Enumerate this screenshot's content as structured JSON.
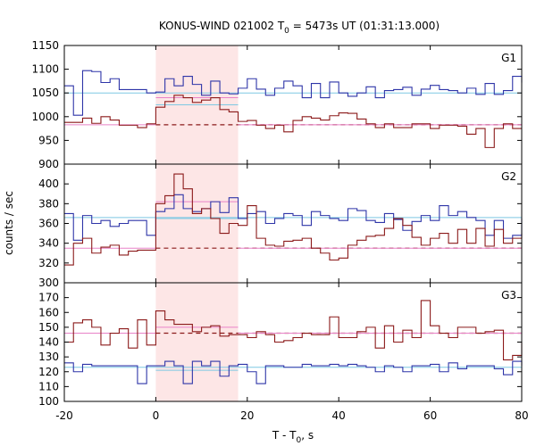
{
  "chart_data": {
    "type": "line",
    "title": {
      "prefix": "KONUS-WIND 021002 T",
      "sub": "0",
      "suffix": " = 5473s UT (01:31:13.000)"
    },
    "xlabel": {
      "prefix": "T - T",
      "sub": "0",
      "suffix": ", s"
    },
    "ylabel": "counts / sec",
    "xlim": [
      -20,
      80
    ],
    "xticks": [
      -20,
      0,
      20,
      40,
      60,
      80
    ],
    "highlight_interval": [
      0,
      18
    ],
    "colors": {
      "blue": "#2e35a8",
      "red": "#8b1a1a",
      "cyan_bg": "#7ec8e3",
      "pink_bg": "#e882c8",
      "highlight": "#fde6e6"
    },
    "panels": [
      {
        "name": "G1",
        "ylim": [
          900,
          1150
        ],
        "yticks": [
          900,
          950,
          1000,
          1050,
          1100,
          1150
        ],
        "series": [
          {
            "color": "blue",
            "x": [
              -20,
              -18,
              -16,
              -14,
              -12,
              -10,
              -8,
              -6,
              -4,
              -2,
              0,
              2,
              4,
              6,
              8,
              10,
              12,
              14,
              16,
              18,
              20,
              22,
              24,
              26,
              28,
              30,
              32,
              34,
              36,
              38,
              40,
              42,
              44,
              46,
              48,
              50,
              52,
              54,
              56,
              58,
              60,
              62,
              64,
              66,
              68,
              70,
              72,
              74,
              76,
              78,
              80
            ],
            "y": [
              1065,
              1003,
              1097,
              1095,
              1072,
              1080,
              1057,
              1057,
              1057,
              1050,
              1052,
              1080,
              1065,
              1085,
              1068,
              1045,
              1075,
              1050,
              1048,
              1060,
              1080,
              1058,
              1045,
              1060,
              1075,
              1065,
              1040,
              1070,
              1040,
              1073,
              1050,
              1043,
              1050,
              1063,
              1040,
              1055,
              1057,
              1062,
              1045,
              1058,
              1066,
              1057,
              1055,
              1050,
              1060,
              1047,
              1070,
              1047,
              1055,
              1085,
              1072
            ]
          },
          {
            "color": "red",
            "x": [
              -20,
              -18,
              -16,
              -14,
              -12,
              -10,
              -8,
              -6,
              -4,
              -2,
              0,
              2,
              4,
              6,
              8,
              10,
              12,
              14,
              16,
              18,
              20,
              22,
              24,
              26,
              28,
              30,
              32,
              34,
              36,
              38,
              40,
              42,
              44,
              46,
              48,
              50,
              52,
              54,
              56,
              58,
              60,
              62,
              64,
              66,
              68,
              70,
              72,
              74,
              76,
              78,
              80
            ],
            "y": [
              988,
              988,
              997,
              986,
              1000,
              993,
              982,
              982,
              977,
              985,
              1020,
              1032,
              1045,
              1040,
              1030,
              1035,
              1040,
              1015,
              1010,
              990,
              992,
              982,
              975,
              982,
              968,
              992,
              1000,
              997,
              993,
              1002,
              1008,
              1007,
              995,
              985,
              977,
              985,
              977,
              977,
              985,
              985,
              975,
              982,
              982,
              980,
              963,
              975,
              935,
              975,
              985,
              975,
              975
            ]
          }
        ],
        "background_levels": [
          {
            "color": "cyan_bg",
            "value": 1050
          },
          {
            "color": "pink_bg",
            "value": 983,
            "dashed_color": "red"
          }
        ],
        "interval_levels": [
          {
            "color": "cyan_bg",
            "value": 1025
          },
          {
            "color": "pink_bg",
            "value": 1040
          }
        ]
      },
      {
        "name": "G2",
        "ylim": [
          300,
          420
        ],
        "yticks": [
          300,
          320,
          340,
          360,
          380,
          400
        ],
        "series": [
          {
            "color": "blue",
            "x": [
              -20,
              -18,
              -16,
              -14,
              -12,
              -10,
              -8,
              -6,
              -4,
              -2,
              0,
              2,
              4,
              6,
              8,
              10,
              12,
              14,
              16,
              18,
              20,
              22,
              24,
              26,
              28,
              30,
              32,
              34,
              36,
              38,
              40,
              42,
              44,
              46,
              48,
              50,
              52,
              54,
              56,
              58,
              60,
              62,
              64,
              66,
              68,
              70,
              72,
              74,
              76,
              78,
              80
            ],
            "y": [
              370,
              343,
              368,
              360,
              363,
              357,
              360,
              363,
              363,
              348,
              372,
              375,
              389,
              375,
              372,
              375,
              382,
              371,
              386,
              365,
              370,
              372,
              360,
              365,
              370,
              368,
              358,
              372,
              368,
              365,
              363,
              375,
              373,
              363,
              361,
              370,
              364,
              353,
              362,
              368,
              363,
              378,
              368,
              372,
              366,
              363,
              348,
              363,
              345,
              348,
              365
            ]
          },
          {
            "color": "red",
            "x": [
              -20,
              -18,
              -16,
              -14,
              -12,
              -10,
              -8,
              -6,
              -4,
              -2,
              0,
              2,
              4,
              6,
              8,
              10,
              12,
              14,
              16,
              18,
              20,
              22,
              24,
              26,
              28,
              30,
              32,
              34,
              36,
              38,
              40,
              42,
              44,
              46,
              48,
              50,
              52,
              54,
              56,
              58,
              60,
              62,
              64,
              66,
              68,
              70,
              72,
              74,
              76,
              78,
              80
            ],
            "y": [
              318,
              340,
              345,
              330,
              336,
              338,
              328,
              332,
              333,
              333,
              380,
              388,
              410,
              395,
              370,
              375,
              365,
              350,
              360,
              358,
              378,
              345,
              338,
              337,
              342,
              343,
              345,
              335,
              330,
              323,
              325,
              338,
              343,
              347,
              348,
              355,
              365,
              358,
              346,
              338,
              345,
              350,
              340,
              354,
              340,
              355,
              337,
              354,
              340,
              345,
              350
            ]
          }
        ],
        "background_levels": [
          {
            "color": "cyan_bg",
            "value": 366
          },
          {
            "color": "pink_bg",
            "value": 335,
            "dashed_color": "red"
          }
        ],
        "interval_levels": [
          {
            "color": "cyan_bg",
            "value": 365
          },
          {
            "color": "pink_bg",
            "value": 382
          }
        ]
      },
      {
        "name": "G3",
        "ylim": [
          100,
          180
        ],
        "yticks": [
          100,
          110,
          120,
          130,
          140,
          150,
          160,
          170
        ],
        "series": [
          {
            "color": "blue",
            "x": [
              -20,
              -18,
              -16,
              -14,
              -12,
              -10,
              -8,
              -6,
              -4,
              -2,
              0,
              2,
              4,
              6,
              8,
              10,
              12,
              14,
              16,
              18,
              20,
              22,
              24,
              26,
              28,
              30,
              32,
              34,
              36,
              38,
              40,
              42,
              44,
              46,
              48,
              50,
              52,
              54,
              56,
              58,
              60,
              62,
              64,
              66,
              68,
              70,
              72,
              74,
              76,
              78,
              80
            ],
            "y": [
              126,
              120,
              125,
              124,
              124,
              124,
              124,
              124,
              112,
              124,
              124,
              127,
              124,
              112,
              127,
              124,
              127,
              117,
              124,
              125,
              120,
              112,
              124,
              124,
              123,
              123,
              125,
              124,
              124,
              125,
              124,
              125,
              124,
              123,
              120,
              124,
              123,
              120,
              124,
              124,
              125,
              120,
              126,
              122,
              124,
              124,
              124,
              122,
              118,
              127,
              124
            ]
          },
          {
            "color": "red",
            "x": [
              -20,
              -18,
              -16,
              -14,
              -12,
              -10,
              -8,
              -6,
              -4,
              -2,
              0,
              2,
              4,
              6,
              8,
              10,
              12,
              14,
              16,
              18,
              20,
              22,
              24,
              26,
              28,
              30,
              32,
              34,
              36,
              38,
              40,
              42,
              44,
              46,
              48,
              50,
              52,
              54,
              56,
              58,
              60,
              62,
              64,
              66,
              68,
              70,
              72,
              74,
              76,
              78,
              80
            ],
            "y": [
              140,
              153,
              155,
              150,
              138,
              146,
              149,
              136,
              155,
              138,
              161,
              155,
              152,
              152,
              147,
              150,
              151,
              144,
              145,
              145,
              143,
              147,
              145,
              140,
              141,
              143,
              146,
              145,
              145,
              157,
              143,
              143,
              147,
              150,
              136,
              151,
              140,
              148,
              143,
              168,
              151,
              146,
              143,
              150,
              150,
              146,
              147,
              148,
              128,
              131,
              140
            ]
          }
        ],
        "background_levels": [
          {
            "color": "cyan_bg",
            "value": 123
          },
          {
            "color": "pink_bg",
            "value": 146,
            "dashed_color": "red"
          }
        ],
        "interval_levels": [
          {
            "color": "cyan_bg",
            "value": 121
          },
          {
            "color": "pink_bg",
            "value": 150
          }
        ]
      }
    ]
  }
}
